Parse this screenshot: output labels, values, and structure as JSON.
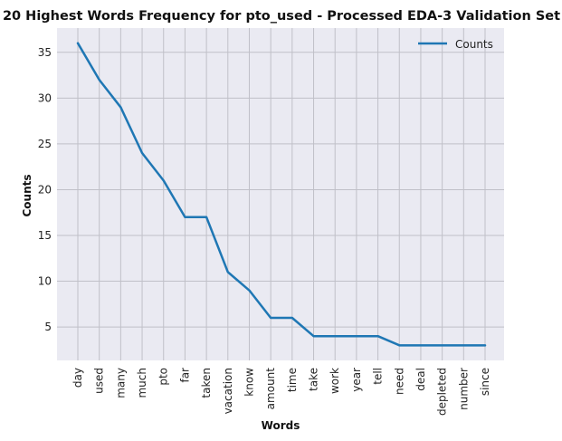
{
  "chart_data": {
    "type": "line",
    "title": "20 Highest Words Frequency for pto_used - Processed EDA-3 Validation Set",
    "xlabel": "Words",
    "ylabel": "Counts",
    "categories": [
      "day",
      "used",
      "many",
      "much",
      "pto",
      "far",
      "taken",
      "vacation",
      "know",
      "amount",
      "time",
      "take",
      "work",
      "year",
      "tell",
      "need",
      "deal",
      "depleted",
      "number",
      "since"
    ],
    "series": [
      {
        "name": "Counts",
        "values": [
          36,
          32,
          29,
          24,
          21,
          17,
          17,
          11,
          9,
          6,
          6,
          4,
          4,
          4,
          4,
          3,
          3,
          3,
          3,
          3
        ],
        "color": "#1f77b4"
      }
    ],
    "yticks": [
      5,
      10,
      15,
      20,
      25,
      30,
      35
    ],
    "ylim": [
      1.35,
      37.65
    ],
    "grid": true,
    "legend_position": "top-right",
    "colors": {
      "plot_background": "#eaeaf2",
      "grid": "#c0c0c8"
    }
  }
}
